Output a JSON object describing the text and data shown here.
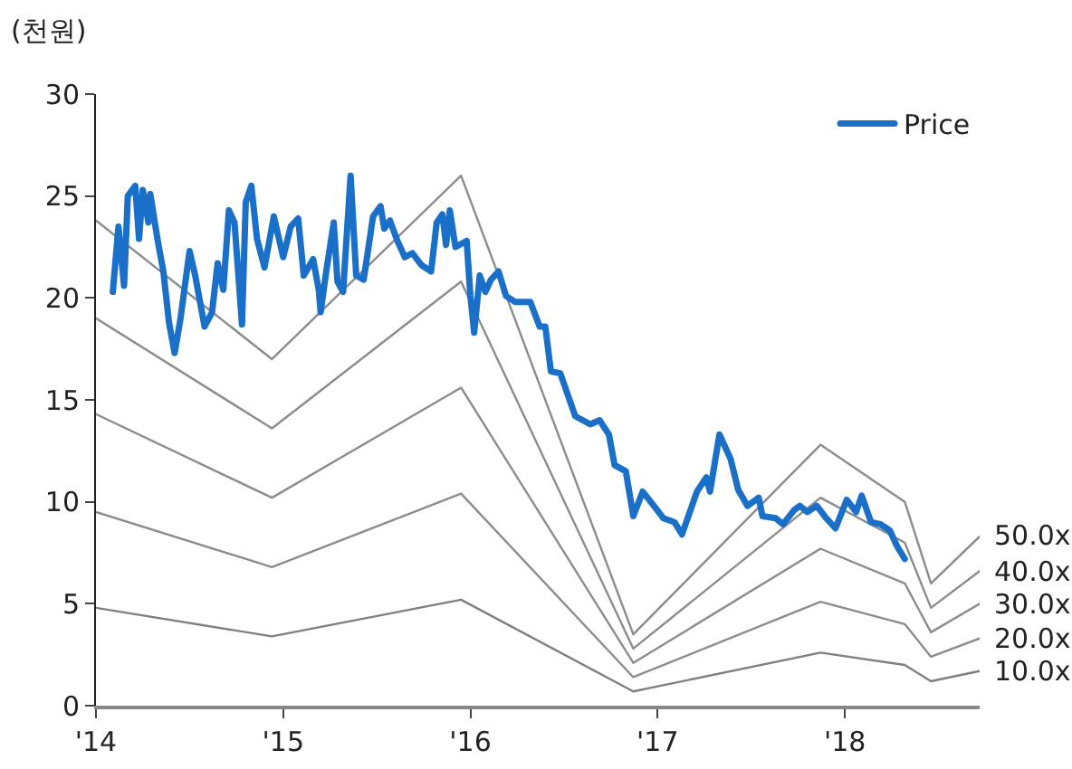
{
  "chart_data": {
    "type": "line",
    "ylabel": "(천원)",
    "xlim": [
      2014,
      2018.72
    ],
    "xticks": [
      {
        "value": 2014,
        "label": "'14"
      },
      {
        "value": 2015,
        "label": "'15"
      },
      {
        "value": 2016,
        "label": "'16"
      },
      {
        "value": 2017,
        "label": "'17"
      },
      {
        "value": 2018,
        "label": "'18"
      }
    ],
    "ylim": [
      0,
      30
    ],
    "yticks": [
      0,
      5,
      10,
      15,
      20,
      25,
      30
    ],
    "grid": false,
    "legend": "top right",
    "marker": "none",
    "line_style": "solid",
    "series": [
      {
        "name": "50.0x",
        "color": "#8c8c8c",
        "x": [
          2014.0,
          2014.94,
          2015.95,
          2016.87,
          2017.87,
          2018.32,
          2018.46,
          2018.72
        ],
        "values": [
          23.8,
          17,
          26,
          3.5,
          12.8,
          10,
          6,
          8.3
        ]
      },
      {
        "name": "40.0x",
        "color": "#8c8c8c",
        "x": [
          2014.0,
          2014.94,
          2015.95,
          2016.87,
          2017.87,
          2018.32,
          2018.46,
          2018.72
        ],
        "values": [
          19,
          13.6,
          20.8,
          2.8,
          10.2,
          8.0,
          4.8,
          6.6
        ]
      },
      {
        "name": "30.0x",
        "color": "#8c8c8c",
        "x": [
          2014.0,
          2014.94,
          2015.95,
          2016.87,
          2017.87,
          2018.32,
          2018.46,
          2018.72
        ],
        "values": [
          14.3,
          10.2,
          15.6,
          2.1,
          7.7,
          6.0,
          3.6,
          5.0
        ]
      },
      {
        "name": "20.0x",
        "color": "#8c8c8c",
        "x": [
          2014.0,
          2014.94,
          2015.95,
          2016.87,
          2017.87,
          2018.32,
          2018.46,
          2018.72
        ],
        "values": [
          9.5,
          6.8,
          10.4,
          1.4,
          5.1,
          4.0,
          2.4,
          3.3
        ]
      },
      {
        "name": "10.0x",
        "color": "#7f7f7f",
        "x": [
          2014.0,
          2014.94,
          2015.95,
          2016.87,
          2017.87,
          2018.32,
          2018.46,
          2018.72
        ],
        "values": [
          4.8,
          3.4,
          5.2,
          0.7,
          2.6,
          2.0,
          1.2,
          1.7
        ]
      },
      {
        "name": "Price",
        "color": "#1a6fc9",
        "x": [
          2014.09,
          2014.12,
          2014.15,
          2014.17,
          2014.21,
          2014.23,
          2014.25,
          2014.28,
          2014.29,
          2014.33,
          2014.36,
          2014.39,
          2014.42,
          2014.45,
          2014.5,
          2014.53,
          2014.58,
          2014.62,
          2014.65,
          2014.68,
          2014.71,
          2014.74,
          2014.78,
          2014.8,
          2014.83,
          2014.86,
          2014.9,
          2014.95,
          2015.0,
          2015.04,
          2015.08,
          2015.11,
          2015.16,
          2015.19,
          2015.2,
          2015.23,
          2015.27,
          2015.29,
          2015.32,
          2015.36,
          2015.39,
          2015.43,
          2015.48,
          2015.52,
          2015.54,
          2015.57,
          2015.61,
          2015.65,
          2015.69,
          2015.74,
          2015.79,
          2015.82,
          2015.85,
          2015.87,
          2015.89,
          2015.92,
          2015.98,
          2016.0,
          2016.02,
          2016.05,
          2016.08,
          2016.11,
          2016.15,
          2016.19,
          2016.24,
          2016.32,
          2016.37,
          2016.4,
          2016.43,
          2016.48,
          2016.56,
          2016.64,
          2016.69,
          2016.74,
          2016.77,
          2016.83,
          2016.87,
          2016.92,
          2016.98,
          2017.03,
          2017.09,
          2017.13,
          2017.21,
          2017.26,
          2017.28,
          2017.33,
          2017.36,
          2017.39,
          2017.43,
          2017.48,
          2017.54,
          2017.56,
          2017.63,
          2017.67,
          2017.73,
          2017.76,
          2017.8,
          2017.85,
          2017.9,
          2017.95,
          2018.01,
          2018.06,
          2018.09,
          2018.14,
          2018.19,
          2018.24,
          2018.28,
          2018.32
        ],
        "values": [
          20.3,
          23.5,
          20.6,
          25.0,
          25.5,
          22.9,
          25.3,
          23.7,
          25.1,
          22.8,
          21.3,
          18.8,
          17.3,
          18.9,
          22.3,
          21.1,
          18.6,
          19.3,
          21.7,
          20.4,
          24.3,
          23.7,
          18.7,
          24.7,
          25.5,
          22.9,
          21.5,
          24.0,
          22.0,
          23.5,
          23.9,
          21.1,
          21.9,
          20.4,
          19.3,
          21.3,
          23.7,
          20.8,
          20.3,
          26.0,
          21.1,
          20.9,
          24.0,
          24.5,
          23.4,
          23.8,
          22.8,
          22.0,
          22.2,
          21.6,
          21.3,
          23.7,
          24.1,
          22.6,
          24.3,
          22.5,
          22.8,
          20.1,
          18.3,
          21.1,
          20.3,
          20.9,
          21.3,
          20.1,
          19.8,
          19.8,
          18.6,
          18.6,
          16.4,
          16.3,
          14.2,
          13.8,
          14.0,
          13.3,
          11.8,
          11.5,
          9.3,
          10.5,
          9.8,
          9.2,
          9.0,
          8.4,
          10.5,
          11.2,
          10.5,
          13.3,
          12.7,
          12.1,
          10.6,
          9.8,
          10.2,
          9.3,
          9.2,
          8.9,
          9.6,
          9.8,
          9.5,
          9.8,
          9.2,
          8.7,
          10.1,
          9.5,
          10.3,
          9.0,
          8.9,
          8.6,
          7.8,
          7.2
        ]
      }
    ]
  }
}
